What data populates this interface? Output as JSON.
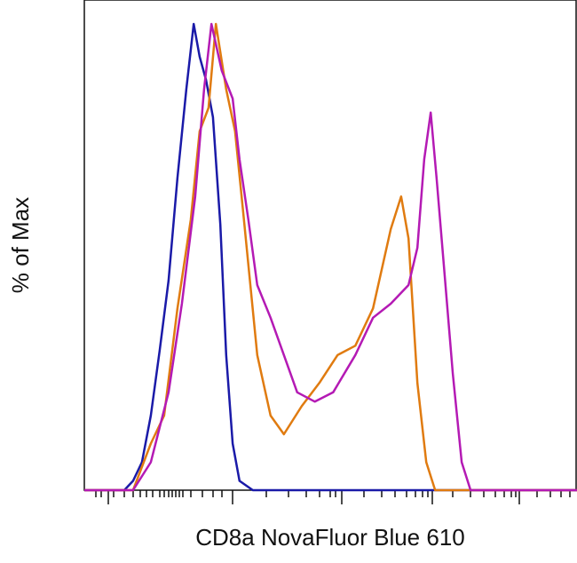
{
  "chart_data": {
    "type": "line",
    "x_label": "CD8a NovaFluor Blue 610",
    "y_label": "% of Max",
    "xlim": [
      0,
      100
    ],
    "ylim": [
      0,
      104
    ],
    "series": [
      {
        "color": "#1a1aa8",
        "x": [
          0,
          8.1,
          9.9,
          11.7,
          13.5,
          15.3,
          17.1,
          18.9,
          20.7,
          22.2,
          23.4,
          24.7,
          26.1,
          27.6,
          28.8,
          30.1,
          31.5,
          34.2,
          100
        ],
        "values": [
          0,
          0,
          2,
          6,
          16,
          30,
          45,
          67,
          86,
          100,
          93,
          88,
          80,
          57,
          29,
          10,
          2,
          0,
          0
        ]
      },
      {
        "color": "#e07b10",
        "x": [
          0,
          9.9,
          13.5,
          16.2,
          18.9,
          21.6,
          23.4,
          25.2,
          26.7,
          28.8,
          30.6,
          32.4,
          35.1,
          37.8,
          40.5,
          44.1,
          47.7,
          51.4,
          55.0,
          58.6,
          62.2,
          64.3,
          65.8,
          67.6,
          69.4,
          71.2,
          100
        ],
        "values": [
          0,
          0,
          10,
          16,
          39,
          58,
          77,
          82,
          100,
          86,
          77,
          58,
          29,
          16,
          12,
          18,
          23,
          29,
          31,
          39,
          56,
          63,
          54,
          23,
          6,
          0,
          0
        ]
      },
      {
        "color": "#b41ab4",
        "x": [
          0,
          9.9,
          13.5,
          17.1,
          19.8,
          22.5,
          24.3,
          25.8,
          27.9,
          30.1,
          31.5,
          33.3,
          35.1,
          37.8,
          40.5,
          43.2,
          46.8,
          50.5,
          55.0,
          58.6,
          62.2,
          65.8,
          67.6,
          69.0,
          70.3,
          71.5,
          73.0,
          74.8,
          76.6,
          78.4,
          100
        ],
        "values": [
          0,
          0,
          6,
          21,
          40,
          63,
          86,
          100,
          90,
          84,
          71,
          58,
          44,
          37,
          29,
          21,
          19,
          21,
          29,
          37,
          40,
          44,
          52,
          71,
          81,
          67,
          48,
          25,
          6,
          0,
          0
        ]
      }
    ]
  }
}
